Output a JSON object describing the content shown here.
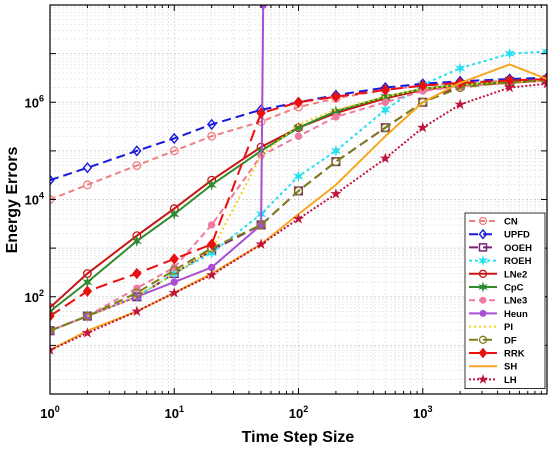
{
  "chart_data": {
    "type": "line",
    "xscale": "log",
    "yscale": "log",
    "xlim": [
      1,
      10000
    ],
    "ylim": [
      1,
      100000000
    ],
    "xlabel": "Time Step Size",
    "ylabel": "Energy Errors",
    "grid": true,
    "legend_position": "bottom-right",
    "x_tick_labels": [
      {
        "base": "10",
        "exp": "0"
      },
      {
        "base": "10",
        "exp": "1"
      },
      {
        "base": "10",
        "exp": "2"
      },
      {
        "base": "10",
        "exp": "3"
      }
    ],
    "y_tick_labels": [
      {
        "base": "10",
        "exp": "2"
      },
      {
        "base": "10",
        "exp": "4"
      },
      {
        "base": "10",
        "exp": "6"
      }
    ],
    "series": [
      {
        "name": "CN",
        "color": "#f07f80",
        "dash": "6,4",
        "marker": "circle-open",
        "x": [
          1,
          2,
          5,
          10,
          20,
          50,
          100,
          200,
          500,
          1000,
          2000,
          5000,
          10000
        ],
        "y": [
          10000,
          20000,
          50000,
          100000,
          200000,
          400000,
          800000,
          1200000,
          1800000,
          2200000,
          2500000,
          2800000,
          3000000
        ]
      },
      {
        "name": "UPFD",
        "color": "#1a1adb",
        "dash": "9,5",
        "marker": "diamond-open",
        "x": [
          1,
          2,
          5,
          10,
          20,
          50,
          100,
          200,
          500,
          1000,
          2000,
          5000,
          10000
        ],
        "y": [
          25000,
          45000,
          100000,
          180000,
          350000,
          700000,
          1000000,
          1400000,
          2000000,
          2400000,
          2700000,
          3000000,
          3200000
        ]
      },
      {
        "name": "OOEH",
        "color": "#7b1f7b",
        "dash": "9,5",
        "marker": "square-open",
        "x": [
          1,
          2,
          5,
          10,
          20,
          50,
          100,
          200,
          500,
          1000,
          2000,
          5000,
          10000
        ],
        "y": [
          20,
          40,
          100,
          300,
          900,
          3000,
          15000,
          60000,
          300000,
          1000000,
          2200000,
          2700000,
          2900000
        ]
      },
      {
        "name": "ROEH",
        "color": "#22e0f0",
        "dash": "3,3",
        "marker": "star6",
        "x": [
          1,
          2,
          5,
          10,
          20,
          50,
          100,
          200,
          500,
          1000,
          2000,
          5000,
          10000
        ],
        "y": [
          20,
          40,
          100,
          300,
          800,
          5000,
          30000,
          100000,
          700000,
          2300000,
          5000000,
          10000000,
          11000000
        ]
      },
      {
        "name": "LNe2",
        "color": "#c81414",
        "dash": "",
        "marker": "circle-open",
        "x": [
          1,
          2,
          5,
          10,
          20,
          50,
          100,
          200,
          500,
          1000,
          2000,
          5000,
          10000
        ],
        "y": [
          60,
          300,
          1800,
          6500,
          25000,
          120000,
          300000,
          600000,
          1200000,
          1800000,
          2200000,
          2500000,
          2800000
        ]
      },
      {
        "name": "CpC",
        "color": "#2e8b2e",
        "dash": "",
        "marker": "star6",
        "x": [
          1,
          2,
          5,
          10,
          20,
          50,
          100,
          200,
          500,
          1000,
          2000,
          5000,
          10000
        ],
        "y": [
          50,
          200,
          1400,
          5000,
          20000,
          100000,
          300000,
          650000,
          1300000,
          1900000,
          2300000,
          2600000,
          2800000
        ]
      },
      {
        "name": "LNe3",
        "color": "#ee7aa0",
        "dash": "6,4",
        "marker": "dot",
        "x": [
          1,
          2,
          5,
          10,
          20,
          50,
          100,
          200,
          500,
          1000,
          2000,
          5000,
          10000
        ],
        "y": [
          20,
          40,
          150,
          400,
          3000,
          80000,
          200000,
          500000,
          1000000,
          1700000,
          2100000,
          2500000,
          2800000
        ]
      },
      {
        "name": "Heun",
        "color": "#a84fd4",
        "dash": "",
        "marker": "dot",
        "x": [
          1,
          2,
          5,
          10,
          20,
          50,
          52
        ],
        "y": [
          20,
          40,
          100,
          200,
          400,
          3000,
          100000000
        ]
      },
      {
        "name": "PI",
        "color": "#f2d416",
        "dash": "2,3",
        "marker": "none",
        "x": [
          1,
          2,
          5,
          10,
          20,
          50,
          100,
          200,
          500,
          1000,
          2000,
          5000,
          10000
        ],
        "y": [
          20,
          40,
          100,
          300,
          900,
          80000,
          350000,
          700000,
          1300000,
          1900000,
          2300000,
          2600000,
          2800000
        ]
      },
      {
        "name": "DF",
        "color": "#7f7f1a",
        "dash": "9,5",
        "marker": "circle-open",
        "x": [
          1,
          2,
          5,
          10,
          20,
          50,
          100,
          200,
          500,
          1000,
          2000,
          5000,
          10000
        ],
        "y": [
          20,
          40,
          120,
          350,
          1000,
          3000,
          15000,
          60000,
          300000,
          1000000,
          2000000,
          2600000,
          2800000
        ]
      },
      {
        "name": "RRK",
        "color": "#e81010",
        "dash": "12,6",
        "marker": "diamond-filled",
        "x": [
          1,
          2,
          5,
          10,
          20,
          50,
          100,
          200,
          500,
          1000,
          2000,
          5000,
          10000
        ],
        "y": [
          40,
          130,
          300,
          600,
          1200,
          600000,
          1000000,
          1300000,
          1800000,
          2200000,
          2500000,
          2800000,
          3000000
        ]
      },
      {
        "name": "SH",
        "color": "#f5a623",
        "dash": "",
        "marker": "none",
        "x": [
          1,
          2,
          5,
          10,
          20,
          50,
          100,
          200,
          500,
          1000,
          2000,
          5000,
          10000
        ],
        "y": [
          8,
          20,
          50,
          120,
          300,
          1200,
          5000,
          20000,
          200000,
          1000000,
          2500000,
          6000000,
          3000000
        ]
      },
      {
        "name": "LH",
        "color": "#c0143c",
        "dash": "2,2",
        "marker": "star5",
        "x": [
          1,
          2,
          5,
          10,
          20,
          50,
          100,
          200,
          500,
          1000,
          2000,
          5000,
          10000
        ],
        "y": [
          8,
          18,
          50,
          120,
          280,
          1200,
          4000,
          13000,
          70000,
          300000,
          900000,
          2000000,
          2400000
        ]
      }
    ]
  }
}
